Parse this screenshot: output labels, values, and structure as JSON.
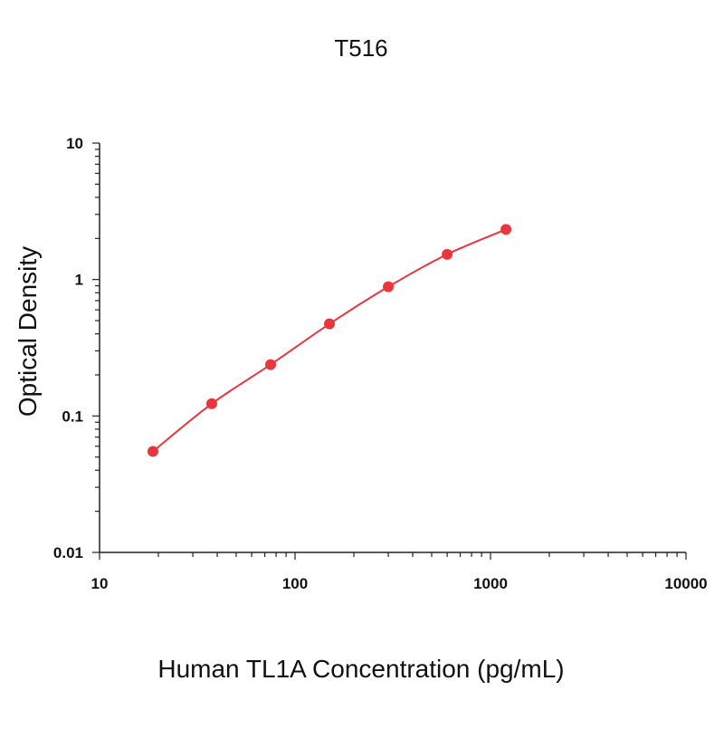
{
  "chart_data": {
    "type": "scatter",
    "title": "T516",
    "xlabel": "Human TL1A Concentration (pg/mL)",
    "ylabel": "Optical Density",
    "x_scale": "log",
    "y_scale": "log",
    "xlim": [
      10,
      10000
    ],
    "ylim": [
      0.01,
      10
    ],
    "x_ticks": [
      "10",
      "100",
      "1000",
      "10000"
    ],
    "y_ticks": [
      "0.01",
      "0.1",
      "1",
      "10"
    ],
    "grid": false,
    "legend": "none",
    "series": [
      {
        "x": [
          18.75,
          37.5,
          75,
          150,
          300,
          600,
          1200
        ],
        "y": [
          0.055,
          0.123,
          0.238,
          0.473,
          0.885,
          1.53,
          2.33
        ],
        "color": "#e8363f",
        "marker": "circle",
        "fit": "smooth curve"
      }
    ]
  }
}
